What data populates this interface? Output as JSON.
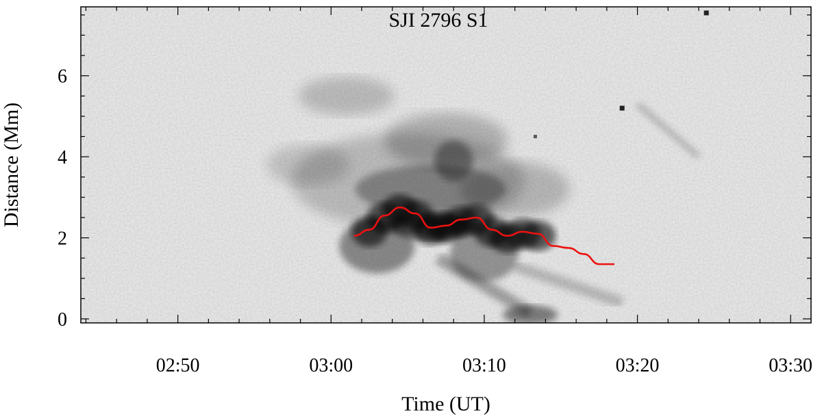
{
  "chart_data": {
    "type": "heatmap",
    "title": "SJI 2796 S1",
    "xlabel": "Time (UT)",
    "ylabel": "Distance (Mm)",
    "xlim": [
      "02:43:40",
      "03:31:20"
    ],
    "ylim": [
      -0.1,
      7.7
    ],
    "x_ticks": [
      "02:50",
      "03:00",
      "03:10",
      "03:20",
      "03:30"
    ],
    "y_ticks": [
      0,
      2,
      4,
      6
    ],
    "colormap": "inverted gray",
    "grid": false,
    "series": [
      {
        "type": "line",
        "color": "#ee1111",
        "x": [
          "03:01:30",
          "03:02:30",
          "03:03:30",
          "03:04:30",
          "03:05:30",
          "03:06:30",
          "03:07:30",
          "03:08:30",
          "03:09:30",
          "03:10:30",
          "03:11:30",
          "03:12:30",
          "03:13:30",
          "03:14:30",
          "03:15:30",
          "03:16:30",
          "03:17:30",
          "03:18:30"
        ],
        "y": [
          2.05,
          2.2,
          2.55,
          2.75,
          2.6,
          2.25,
          2.3,
          2.45,
          2.5,
          2.2,
          2.05,
          2.15,
          2.1,
          1.8,
          1.75,
          1.6,
          1.35,
          1.35
        ]
      }
    ],
    "annotations": [
      {
        "name": "dark band",
        "x": "03:07:30",
        "y": 2.2
      },
      {
        "name": "upper diffuse feature",
        "x": "03:01:00",
        "y": 5.6
      },
      {
        "name": "lower branch",
        "x": "03:12:00",
        "y": 0.6
      },
      {
        "name": "right diagonal streak",
        "x": "03:22:00",
        "y": 4.6
      }
    ]
  }
}
